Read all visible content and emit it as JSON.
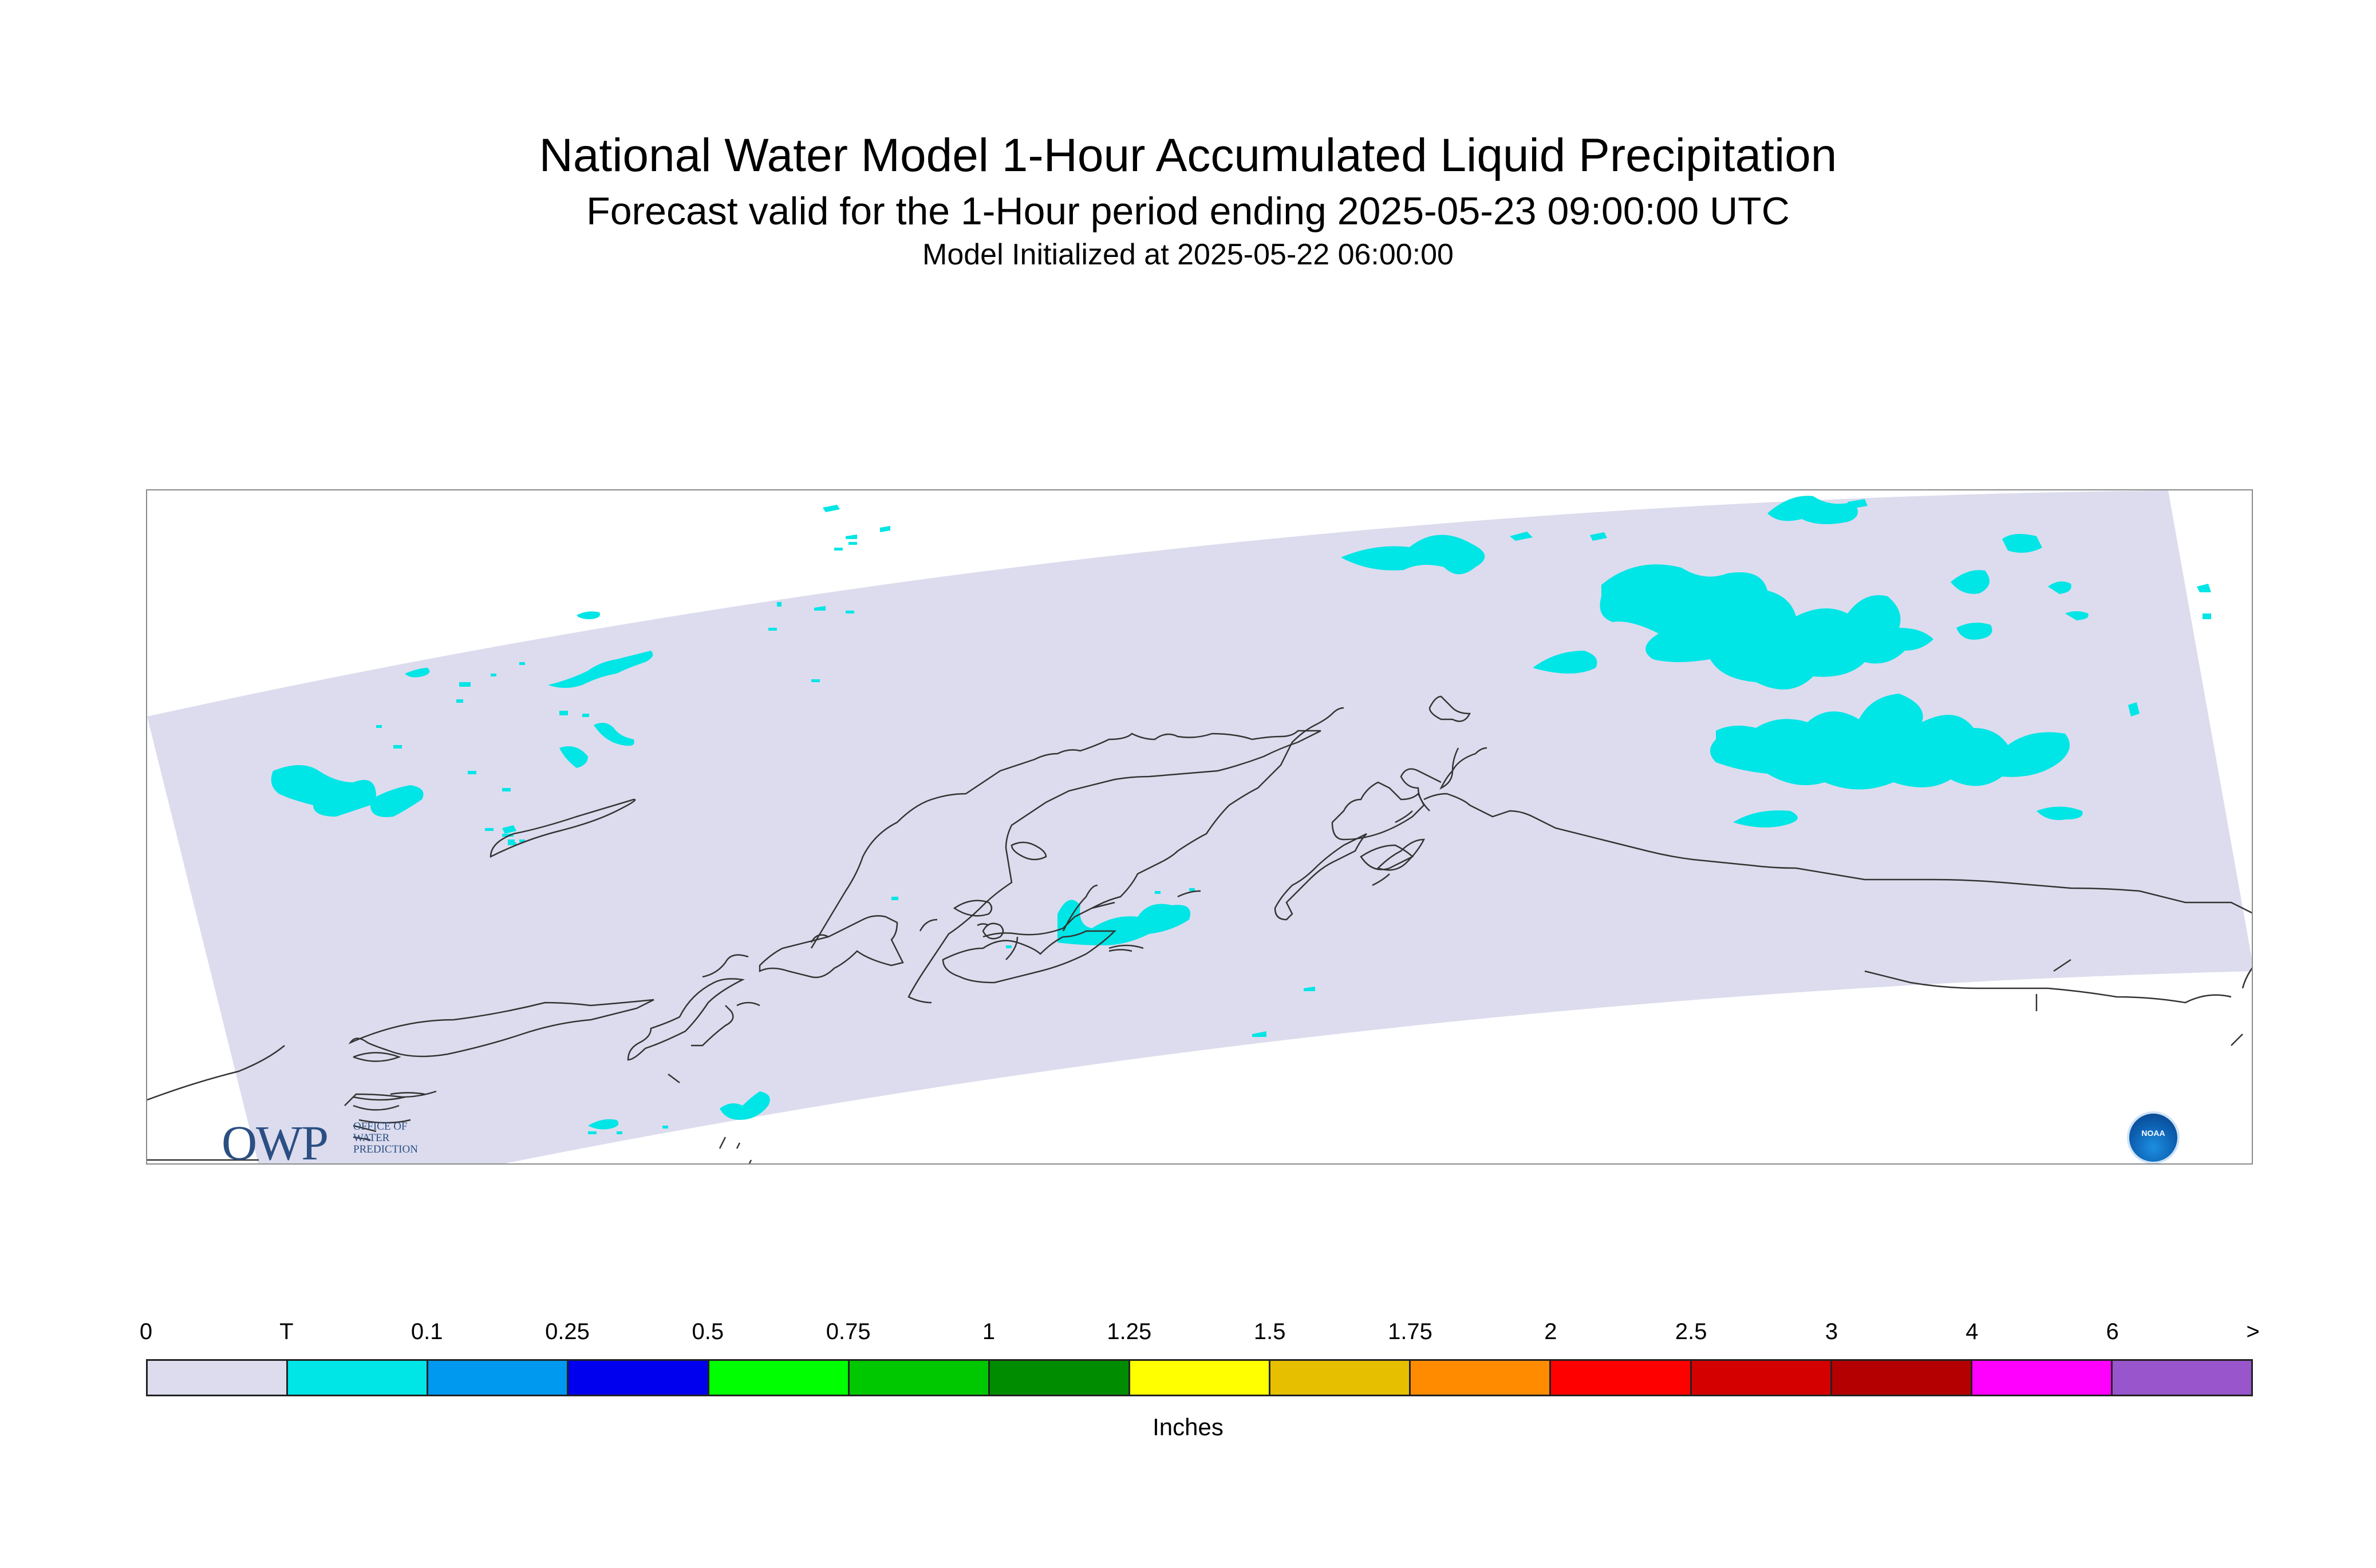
{
  "header": {
    "title": "National Water Model 1-Hour Accumulated Liquid Precipitation",
    "subtitle": "Forecast valid for the 1-Hour period ending 2025-05-23 09:00:00 UTC",
    "init": "Model Initialized at 2025-05-22 06:00:00"
  },
  "map": {
    "domain_color": "#dcdcee",
    "precip_color": "#00e5e5",
    "coastline_color": "#333333"
  },
  "logos": {
    "owp_big": "OWP",
    "owp_small_1": "OFFICE OF",
    "owp_small_2": "WATER",
    "owp_small_3": "PREDICTION",
    "noaa": "NOAA"
  },
  "legend": {
    "ticks": [
      "0",
      "T",
      "0.1",
      "0.25",
      "0.5",
      "0.75",
      "1",
      "1.25",
      "1.5",
      "1.75",
      "2",
      "2.5",
      "3",
      "4",
      "6",
      ">"
    ],
    "colors": [
      "#dcdcee",
      "#00e5e5",
      "#0099f0",
      "#0000ee",
      "#00ff00",
      "#00c800",
      "#008c00",
      "#ffff00",
      "#e6c000",
      "#ff8c00",
      "#ff0000",
      "#d40000",
      "#b40000",
      "#ff00ff",
      "#9955cc"
    ],
    "units": "Inches"
  }
}
